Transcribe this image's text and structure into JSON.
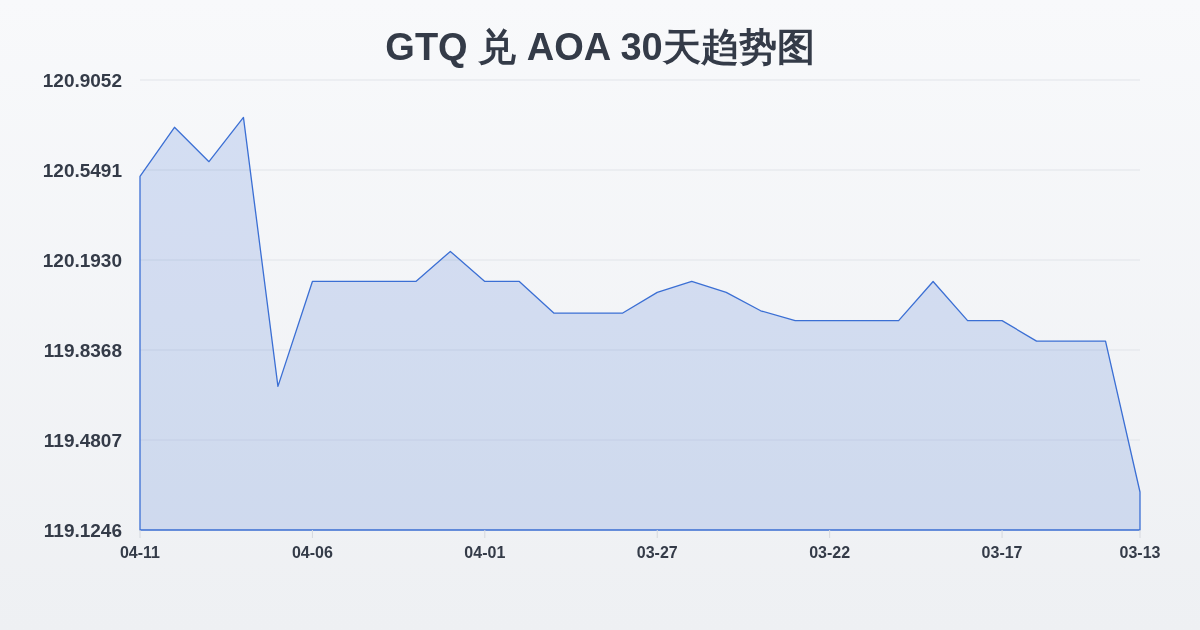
{
  "chart_data": {
    "type": "area",
    "title": "GTQ 兑 AOA 30天趋势图",
    "categories": [
      "04-11",
      null,
      null,
      null,
      null,
      "04-06",
      null,
      null,
      null,
      null,
      "04-01",
      null,
      null,
      null,
      null,
      "03-27",
      null,
      null,
      null,
      null,
      "03-22",
      null,
      null,
      null,
      null,
      "03-17",
      null,
      null,
      null,
      "03-13"
    ],
    "series": [
      {
        "color": "#3b6fd4",
        "values": [
          120.524,
          120.718,
          120.582,
          120.757,
          119.693,
          120.108,
          120.108,
          120.108,
          120.108,
          120.227,
          120.108,
          120.108,
          119.983,
          119.983,
          119.983,
          120.065,
          120.108,
          120.065,
          119.992,
          119.953,
          119.953,
          119.953,
          119.953,
          120.108,
          119.953,
          119.953,
          119.872,
          119.872,
          119.872,
          119.275
        ]
      }
    ],
    "ylim": [
      119.1246,
      120.9052
    ],
    "yticks": [
      119.1246,
      119.4807,
      119.8368,
      {
        "value": 120.193,
        "label": "120.1930"
      },
      120.5491,
      120.9052
    ],
    "grid": "y"
  }
}
